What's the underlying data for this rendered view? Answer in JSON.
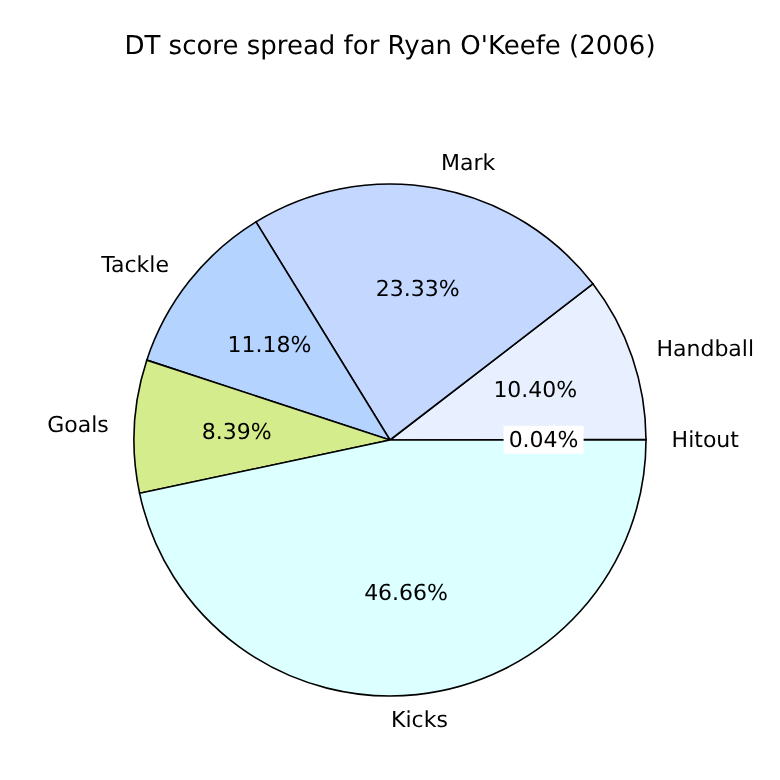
{
  "chart_data": {
    "type": "pie",
    "title": "DT score spread for Ryan O'Keefe (2006)",
    "categories": [
      "Hitout",
      "Handball",
      "Mark",
      "Tackle",
      "Goals",
      "Kicks"
    ],
    "values": [
      0.04,
      10.4,
      23.33,
      11.18,
      8.39,
      46.66
    ],
    "value_labels": [
      "0.04%",
      "10.40%",
      "23.33%",
      "11.18%",
      "8.39%",
      "46.66%"
    ],
    "colors": [
      "#f4f6ff",
      "#e8f0ff",
      "#c4d8ff",
      "#b4d4ff",
      "#d4ec8c",
      "#dcffff"
    ]
  }
}
